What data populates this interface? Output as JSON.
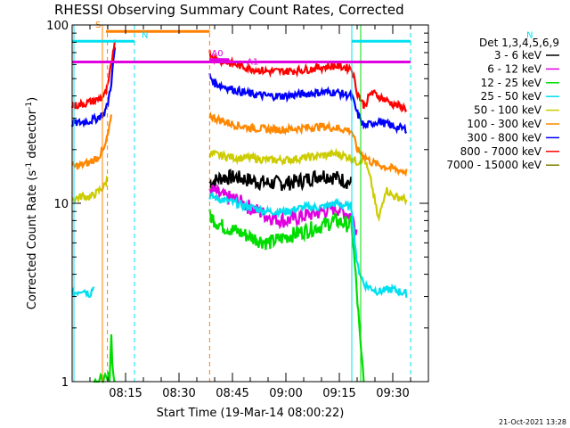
{
  "chart_data": {
    "type": "line",
    "title": "RHESSI Observing Summary Count Rates, Corrected",
    "xlabel": "Start Time (19-Mar-14 08:00:22)",
    "ylabel_parts": [
      "Corrected Count Rate (s",
      "-1",
      " detector",
      "-1",
      ")"
    ],
    "yscale": "log",
    "ylim": [
      1,
      100
    ],
    "xlim_minutes": [
      0,
      100
    ],
    "x_ticks": [
      {
        "m": 15,
        "label": "08:15"
      },
      {
        "m": 30,
        "label": "08:30"
      },
      {
        "m": 45,
        "label": "08:45"
      },
      {
        "m": 60,
        "label": "09:00"
      },
      {
        "m": 75,
        "label": "09:15"
      },
      {
        "m": 90,
        "label": "09:30"
      }
    ],
    "y_ticks": [
      {
        "v": 1,
        "label": "1"
      },
      {
        "v": 10,
        "label": "10"
      },
      {
        "v": 100,
        "label": "100"
      }
    ],
    "timestamp": "21-Oct-2021 13:28",
    "legend_header": "Det 1,3,4,5,6,9",
    "series": [
      {
        "name": "3 - 6 keV",
        "color": "#000000",
        "x": [
          38.6,
          42,
          46,
          50,
          55,
          60,
          65,
          70,
          74,
          78.5
        ],
        "y": [
          13,
          14,
          14,
          13.5,
          13,
          13,
          13.5,
          14.5,
          14,
          13
        ]
      },
      {
        "name": "6 - 12 keV",
        "color": "#e000e0",
        "x": [
          38.6,
          42,
          46,
          50,
          55,
          60,
          65,
          70,
          74,
          78.5,
          80
        ],
        "y": [
          12,
          11,
          10.5,
          9.5,
          8.5,
          8,
          8.5,
          9,
          9.5,
          8.5,
          7
        ]
      },
      {
        "name": "12 - 25 keV",
        "color": "#00dd00",
        "x": [
          6,
          9,
          10,
          10.5,
          11,
          11.5,
          12,
          38.6,
          42,
          46,
          50,
          55,
          60,
          65,
          70,
          74,
          78.5,
          80,
          81,
          82
        ],
        "y": [
          1,
          1,
          1,
          1.1,
          1.8,
          1.1,
          1,
          8.5,
          7.5,
          7,
          6.5,
          6,
          6.5,
          7,
          7.5,
          8,
          7.5,
          3,
          1.5,
          1
        ]
      },
      {
        "name": "25 - 50 keV",
        "color": "#00e0f0",
        "x": [
          0,
          3,
          5,
          6,
          38.6,
          42,
          46,
          50,
          55,
          60,
          65,
          70,
          74,
          78.5,
          80,
          82,
          86,
          90,
          94
        ],
        "y": [
          3.1,
          3.3,
          3.1,
          3.4,
          11,
          10.5,
          10,
          9.5,
          9,
          9,
          9.5,
          9.5,
          10,
          9.5,
          4.5,
          3.5,
          3.2,
          3.3,
          3.1
        ]
      },
      {
        "name": "50 - 100 keV",
        "color": "#cccc00",
        "x": [
          0,
          3,
          5,
          7,
          9,
          10,
          38.6,
          42,
          46,
          50,
          55,
          60,
          65,
          70,
          74,
          78.5,
          80,
          82,
          84,
          86,
          88,
          90,
          94
        ],
        "y": [
          10.5,
          11,
          10.8,
          11.5,
          12.5,
          14,
          19,
          18.5,
          18,
          18,
          17.5,
          17.5,
          18,
          18.5,
          19,
          18,
          17,
          18,
          13,
          8,
          12,
          11,
          10.5
        ]
      },
      {
        "name": "100 - 300 keV",
        "color": "#ff8800",
        "x": [
          0,
          3,
          5,
          7,
          9,
          10,
          11,
          38.6,
          42,
          46,
          50,
          55,
          60,
          65,
          70,
          74,
          78.5,
          80,
          84,
          88,
          94
        ],
        "y": [
          16,
          16.5,
          17,
          18,
          20,
          24,
          30,
          31,
          29,
          27.5,
          26.5,
          26,
          26,
          26.5,
          27,
          26.5,
          25.5,
          20,
          17,
          16,
          15
        ]
      },
      {
        "name": "300 - 800 keV",
        "color": "#0000ff",
        "x": [
          0,
          3,
          5,
          7,
          9,
          10,
          11,
          12,
          38.6,
          40,
          43,
          46,
          50,
          55,
          60,
          65,
          70,
          74,
          78.5,
          80,
          82,
          86,
          90,
          94
        ],
        "y": [
          28,
          28.5,
          29,
          30,
          32,
          36,
          48,
          75,
          52,
          47,
          45,
          43,
          41,
          40,
          40,
          41,
          42,
          42,
          40,
          32,
          27,
          29,
          27,
          26
        ]
      },
      {
        "name": "800 - 7000 keV",
        "color": "#ff0000",
        "x": [
          0,
          3,
          5,
          7,
          9,
          10,
          11,
          12,
          38.6,
          40,
          43,
          46,
          50,
          55,
          60,
          65,
          70,
          74,
          78.5,
          80,
          82,
          84,
          86,
          90,
          94
        ],
        "y": [
          35,
          36,
          37,
          38,
          40,
          45,
          60,
          85,
          70,
          65,
          62,
          60,
          57,
          55,
          55,
          56,
          58,
          59,
          57,
          42,
          35,
          42,
          40,
          36,
          34
        ]
      },
      {
        "name": "7000 - 15000 keV",
        "color": "#808000",
        "x": [],
        "y": []
      }
    ],
    "annotations": {
      "flags": [
        {
          "label": "S",
          "color": "#ff8000",
          "x0": 9.5,
          "x1": 38.6,
          "y": 92
        },
        {
          "label": "N",
          "color": "#00e0f0",
          "x0": 0,
          "x1": 17.5,
          "y": 81
        },
        {
          "label": "N",
          "color": "#00e0f0",
          "x0": 78.5,
          "x1": 95,
          "y": 81
        },
        {
          "label": "A0",
          "color": "#e000e0",
          "x0": 38.6,
          "x1": 44,
          "y": 64
        },
        {
          "label": "A1",
          "color": "#e000e0",
          "x0": 0,
          "x1": 95,
          "y": 62
        }
      ],
      "vlines": [
        {
          "x": 8.5,
          "color": "#ff8000",
          "dash": false
        },
        {
          "x": 9.9,
          "color": "#ff8000",
          "dash": true
        },
        {
          "x": 38.6,
          "color": "#ff8000",
          "dash": true
        },
        {
          "x": 17.5,
          "color": "#00e0f0",
          "dash": true
        },
        {
          "x": 78.5,
          "color": "#00e0f0",
          "dash": false
        },
        {
          "x": 95,
          "color": "#00e0f0",
          "dash": true
        },
        {
          "x": 0.5,
          "color": "#00e0f0",
          "dash": false
        },
        {
          "x": 81,
          "color": "#00dd00",
          "dash": false
        }
      ]
    }
  }
}
